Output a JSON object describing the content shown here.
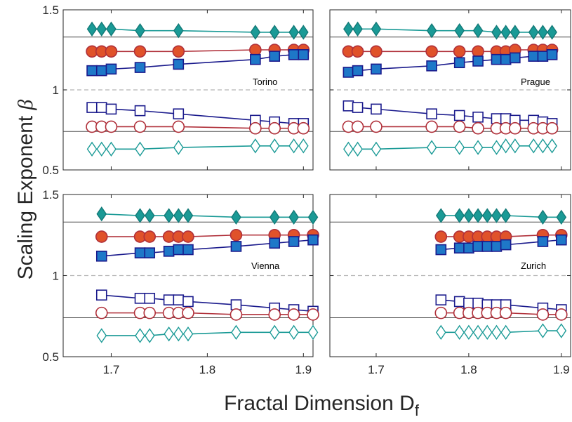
{
  "figure": {
    "ylabel": "Scaling Exponent",
    "ylabel_symbol": "β",
    "xlabel": "Fractal Dimension D",
    "xlabel_sub": "f"
  },
  "style": {
    "teal": "#1a9a96",
    "teal_dark": "#147a78",
    "orange": "#e0522a",
    "red_edge": "#b0303a",
    "blue": "#1e78c8",
    "navy": "#1a1a8c",
    "solid_line": "#4d4d4d",
    "dashed_line": "#b3b3b3",
    "axis": "#262626"
  },
  "chart_data": [
    {
      "type": "line",
      "city": "Torino",
      "x": [
        1.68,
        1.69,
        1.7,
        1.73,
        1.77,
        1.85,
        1.87,
        1.89,
        1.9
      ],
      "ylim": [
        0.5,
        1.5
      ],
      "xlim": [
        1.65,
        1.91
      ],
      "yticks": [
        "0.5",
        "1",
        "1.5"
      ],
      "xticks": [
        "1.7",
        "1.8",
        "1.9"
      ],
      "ref_solid": [
        1.33,
        0.74
      ],
      "ref_dashed": [
        1.0
      ],
      "series": [
        {
          "marker": "diamond",
          "filled": true,
          "values": [
            1.38,
            1.38,
            1.38,
            1.37,
            1.37,
            1.36,
            1.36,
            1.36,
            1.36
          ]
        },
        {
          "marker": "circle",
          "filled": true,
          "values": [
            1.24,
            1.24,
            1.24,
            1.24,
            1.24,
            1.25,
            1.25,
            1.25,
            1.25
          ]
        },
        {
          "marker": "square",
          "filled": true,
          "values": [
            1.12,
            1.12,
            1.13,
            1.14,
            1.16,
            1.19,
            1.21,
            1.22,
            1.22
          ]
        },
        {
          "marker": "square",
          "filled": false,
          "values": [
            0.89,
            0.89,
            0.88,
            0.87,
            0.85,
            0.81,
            0.8,
            0.79,
            0.79
          ]
        },
        {
          "marker": "circle",
          "filled": false,
          "values": [
            0.77,
            0.77,
            0.77,
            0.77,
            0.77,
            0.76,
            0.76,
            0.76,
            0.76
          ]
        },
        {
          "marker": "diamond",
          "filled": false,
          "values": [
            0.63,
            0.63,
            0.63,
            0.63,
            0.64,
            0.65,
            0.65,
            0.65,
            0.65
          ]
        }
      ]
    },
    {
      "type": "line",
      "city": "Prague",
      "x": [
        1.67,
        1.68,
        1.7,
        1.76,
        1.79,
        1.81,
        1.83,
        1.84,
        1.85,
        1.87,
        1.88,
        1.89
      ],
      "ylim": [
        0.5,
        1.5
      ],
      "xlim": [
        1.65,
        1.91
      ],
      "yticks": [
        "0.5",
        "1",
        "1.5"
      ],
      "xticks": [
        "1.7",
        "1.8",
        "1.9"
      ],
      "ref_solid": [
        1.33,
        0.74
      ],
      "ref_dashed": [
        1.0
      ],
      "series": [
        {
          "marker": "diamond",
          "filled": true,
          "values": [
            1.38,
            1.38,
            1.38,
            1.37,
            1.37,
            1.37,
            1.36,
            1.36,
            1.36,
            1.36,
            1.36,
            1.36
          ]
        },
        {
          "marker": "circle",
          "filled": true,
          "values": [
            1.24,
            1.24,
            1.24,
            1.24,
            1.24,
            1.24,
            1.24,
            1.24,
            1.25,
            1.25,
            1.25,
            1.25
          ]
        },
        {
          "marker": "square",
          "filled": true,
          "values": [
            1.11,
            1.12,
            1.13,
            1.15,
            1.17,
            1.18,
            1.19,
            1.19,
            1.2,
            1.21,
            1.21,
            1.22
          ]
        },
        {
          "marker": "square",
          "filled": false,
          "values": [
            0.9,
            0.89,
            0.88,
            0.85,
            0.84,
            0.83,
            0.82,
            0.82,
            0.81,
            0.81,
            0.8,
            0.79
          ]
        },
        {
          "marker": "circle",
          "filled": false,
          "values": [
            0.77,
            0.77,
            0.77,
            0.77,
            0.77,
            0.76,
            0.76,
            0.76,
            0.76,
            0.76,
            0.76,
            0.76
          ]
        },
        {
          "marker": "diamond",
          "filled": false,
          "values": [
            0.63,
            0.63,
            0.63,
            0.64,
            0.64,
            0.64,
            0.64,
            0.65,
            0.65,
            0.65,
            0.65,
            0.65
          ]
        }
      ]
    },
    {
      "type": "line",
      "city": "Vienna",
      "x": [
        1.69,
        1.73,
        1.74,
        1.76,
        1.77,
        1.78,
        1.83,
        1.87,
        1.89,
        1.91
      ],
      "ylim": [
        0.5,
        1.5
      ],
      "xlim": [
        1.65,
        1.91
      ],
      "yticks": [
        "0.5",
        "1",
        "1.5"
      ],
      "xticks": [
        "1.7",
        "1.8",
        "1.9"
      ],
      "ref_solid": [
        1.33,
        0.74
      ],
      "ref_dashed": [
        1.0
      ],
      "series": [
        {
          "marker": "diamond",
          "filled": true,
          "values": [
            1.38,
            1.37,
            1.37,
            1.37,
            1.37,
            1.37,
            1.36,
            1.36,
            1.36,
            1.36
          ]
        },
        {
          "marker": "circle",
          "filled": true,
          "values": [
            1.24,
            1.24,
            1.24,
            1.24,
            1.24,
            1.24,
            1.25,
            1.25,
            1.25,
            1.25
          ]
        },
        {
          "marker": "square",
          "filled": true,
          "values": [
            1.12,
            1.14,
            1.14,
            1.15,
            1.16,
            1.16,
            1.18,
            1.2,
            1.21,
            1.22
          ]
        },
        {
          "marker": "square",
          "filled": false,
          "values": [
            0.88,
            0.86,
            0.86,
            0.85,
            0.85,
            0.84,
            0.82,
            0.8,
            0.79,
            0.78
          ]
        },
        {
          "marker": "circle",
          "filled": false,
          "values": [
            0.77,
            0.77,
            0.77,
            0.77,
            0.77,
            0.77,
            0.76,
            0.76,
            0.76,
            0.76
          ]
        },
        {
          "marker": "diamond",
          "filled": false,
          "values": [
            0.63,
            0.63,
            0.63,
            0.64,
            0.64,
            0.64,
            0.65,
            0.65,
            0.65,
            0.65
          ]
        }
      ]
    },
    {
      "type": "line",
      "city": "Zurich",
      "x": [
        1.77,
        1.79,
        1.8,
        1.81,
        1.82,
        1.83,
        1.84,
        1.88,
        1.9
      ],
      "ylim": [
        0.5,
        1.5
      ],
      "xlim": [
        1.65,
        1.91
      ],
      "yticks": [
        "0.5",
        "1",
        "1.5"
      ],
      "xticks": [
        "1.7",
        "1.8",
        "1.9"
      ],
      "ref_solid": [
        1.33,
        0.74
      ],
      "ref_dashed": [
        1.0
      ],
      "series": [
        {
          "marker": "diamond",
          "filled": true,
          "values": [
            1.37,
            1.37,
            1.37,
            1.37,
            1.37,
            1.37,
            1.37,
            1.36,
            1.36
          ]
        },
        {
          "marker": "circle",
          "filled": true,
          "values": [
            1.24,
            1.24,
            1.24,
            1.24,
            1.24,
            1.24,
            1.24,
            1.25,
            1.25
          ]
        },
        {
          "marker": "square",
          "filled": true,
          "values": [
            1.16,
            1.17,
            1.17,
            1.18,
            1.18,
            1.18,
            1.19,
            1.21,
            1.22
          ]
        },
        {
          "marker": "square",
          "filled": false,
          "values": [
            0.85,
            0.84,
            0.83,
            0.83,
            0.82,
            0.82,
            0.82,
            0.8,
            0.79
          ]
        },
        {
          "marker": "circle",
          "filled": false,
          "values": [
            0.77,
            0.77,
            0.77,
            0.77,
            0.77,
            0.77,
            0.77,
            0.76,
            0.76
          ]
        },
        {
          "marker": "diamond",
          "filled": false,
          "values": [
            0.65,
            0.65,
            0.65,
            0.65,
            0.65,
            0.65,
            0.65,
            0.66,
            0.66
          ]
        }
      ]
    }
  ]
}
